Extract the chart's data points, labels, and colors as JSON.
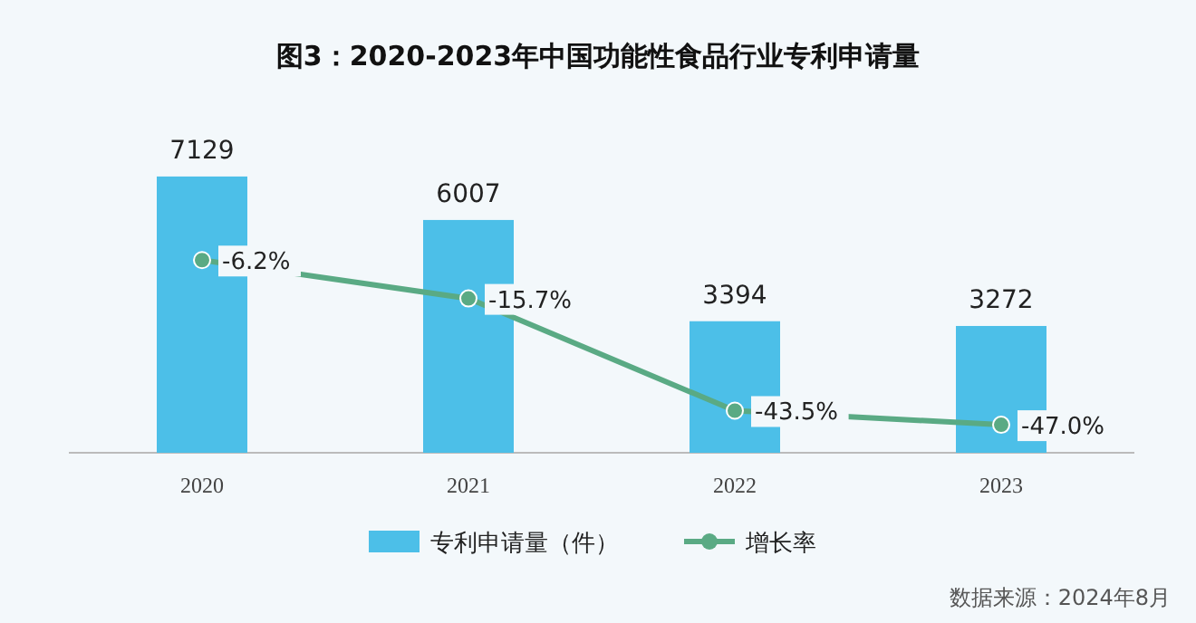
{
  "chart_data": {
    "type": "bar",
    "title": "图3：2020-2023年中国功能性食品行业专利申请量",
    "categories": [
      "2020",
      "2021",
      "2022",
      "2023"
    ],
    "series": [
      {
        "name": "专利申请量（件）",
        "color": "#4cbfe8",
        "values": [
          7129,
          6007,
          3394,
          3272
        ]
      },
      {
        "name": "增长率",
        "type": "line",
        "axis": "y2",
        "color": "#5aaa84",
        "marker": "circle",
        "values": [
          -6.2,
          -15.7,
          -43.5,
          -47.0
        ],
        "value_labels": [
          "-6.2%",
          "-15.7%",
          "-43.5%",
          "-47.0%"
        ]
      }
    ],
    "data_labels": true,
    "tick_labels": "x",
    "legend": "bottom",
    "annotations": [
      "数据来源：2024年8月"
    ]
  }
}
